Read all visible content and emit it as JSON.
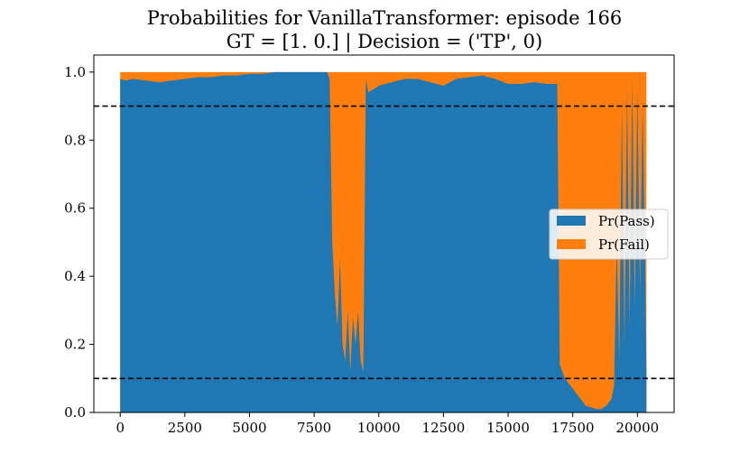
{
  "chart_data": {
    "type": "area",
    "stacked": true,
    "title": "Probabilities for VanillaTransformer: episode 166",
    "subtitle": "GT = [1. 0.] | Decision = ('TP', 0)",
    "xlabel": "",
    "ylabel": "",
    "xlim": [
      -1020,
      21420
    ],
    "ylim": [
      0.0,
      1.05
    ],
    "xticks": [
      0,
      2500,
      5000,
      7500,
      10000,
      12500,
      15000,
      17500,
      20000
    ],
    "yticks": [
      "0.0",
      "0.2",
      "0.4",
      "0.6",
      "0.8",
      "1.0"
    ],
    "ytick_values": [
      0.0,
      0.2,
      0.4,
      0.6,
      0.8,
      1.0
    ],
    "thresholds": [
      0.9,
      0.1
    ],
    "threshold_style": "dashed black",
    "grid": false,
    "legend_position": "center-right",
    "colors": {
      "pass": "#1f77b4",
      "fail": "#ff7f0e",
      "threshold": "#000000"
    },
    "series": [
      {
        "name": "Pr(Pass)",
        "x": [
          0,
          200,
          500,
          1000,
          1500,
          2000,
          2500,
          3000,
          3500,
          4000,
          4500,
          5000,
          5500,
          6000,
          6500,
          7000,
          7500,
          8000,
          8100,
          8200,
          8300,
          8400,
          8500,
          8600,
          8700,
          8800,
          8900,
          9000,
          9100,
          9200,
          9300,
          9400,
          9500,
          9600,
          10000,
          10500,
          11000,
          11500,
          12000,
          12500,
          13000,
          13500,
          14000,
          14500,
          15000,
          15500,
          16000,
          16500,
          16900,
          17000,
          17100,
          17200,
          17400,
          17600,
          17800,
          18000,
          18200,
          18400,
          18600,
          18800,
          19000,
          19100,
          19200,
          19300,
          19400,
          19500,
          19600,
          19700,
          19800,
          19900,
          20000,
          20100,
          20200,
          20300,
          20350
        ],
        "values": [
          0.98,
          0.975,
          0.98,
          0.975,
          0.97,
          0.975,
          0.98,
          0.985,
          0.985,
          0.99,
          0.99,
          0.995,
          0.995,
          1.0,
          1.0,
          1.0,
          1.0,
          1.0,
          0.98,
          0.5,
          0.35,
          0.25,
          0.45,
          0.2,
          0.15,
          0.3,
          0.12,
          0.28,
          0.2,
          0.3,
          0.15,
          0.12,
          0.98,
          0.94,
          0.96,
          0.97,
          0.98,
          0.98,
          0.97,
          0.96,
          0.98,
          0.985,
          0.99,
          0.98,
          0.965,
          0.965,
          0.97,
          0.965,
          0.965,
          0.14,
          0.12,
          0.1,
          0.08,
          0.06,
          0.04,
          0.02,
          0.015,
          0.01,
          0.01,
          0.02,
          0.04,
          0.08,
          0.5,
          0.15,
          0.9,
          0.2,
          0.95,
          0.25,
          0.98,
          0.3,
          0.95,
          0.35,
          0.9,
          0.45,
          0.12
        ]
      },
      {
        "name": "Pr(Fail)",
        "values_rule": "1 - Pr(Pass), stacked on top to total 1.0"
      }
    ]
  }
}
